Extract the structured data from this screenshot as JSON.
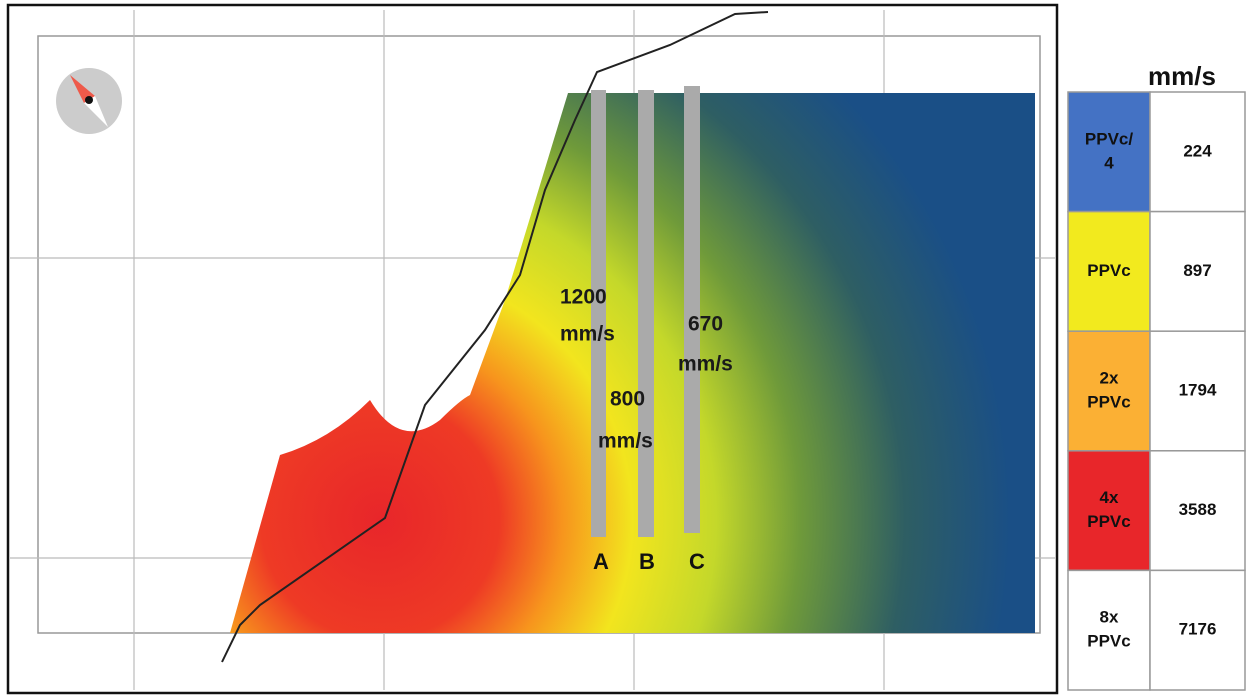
{
  "map": {
    "labels": [
      {
        "lines": [
          "1200",
          "mm/s"
        ]
      },
      {
        "lines": [
          "800",
          "mm/s"
        ]
      },
      {
        "lines": [
          "670",
          "mm/s"
        ]
      }
    ],
    "columns": [
      "A",
      "B",
      "C"
    ]
  },
  "legend": {
    "unit": "mm/s",
    "rows": [
      {
        "lines": [
          "PPVc/",
          "4"
        ],
        "value": 224,
        "color": "#4472c4"
      },
      {
        "lines": [
          "PPVc"
        ],
        "value": 897,
        "color": "#f2ea1e"
      },
      {
        "lines": [
          "2x",
          "PPVc"
        ],
        "value": 1794,
        "color": "#fbb034"
      },
      {
        "lines": [
          "4x",
          "PPVc"
        ],
        "value": 3588,
        "color": "#e8262a"
      },
      {
        "lines": [
          "8x",
          "PPVc"
        ],
        "value": 7176,
        "color": "#ffffff"
      }
    ]
  }
}
